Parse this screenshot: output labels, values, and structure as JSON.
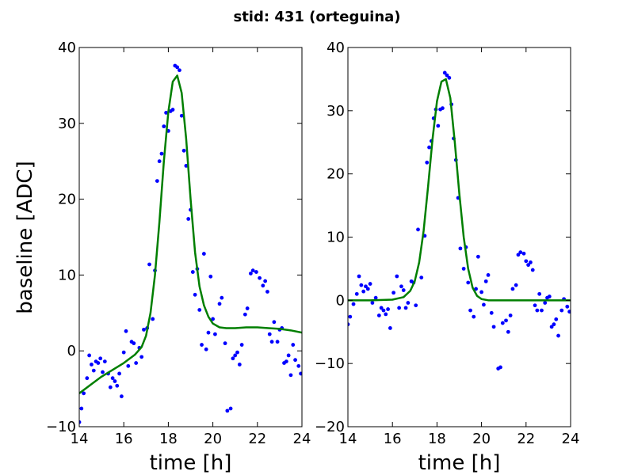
{
  "figure": {
    "title": "stid: 431 (orteguina)",
    "ylabel": "baseline [ADC]",
    "colors": {
      "points": "#0000ff",
      "fit": "#007f00",
      "axes": "#000000",
      "background": "#ffffff"
    }
  },
  "chart_data": [
    {
      "type": "scatter",
      "title": "",
      "xlabel": "time [h]",
      "ylabel": "baseline [ADC]",
      "xlim": [
        14,
        24
      ],
      "ylim": [
        -10,
        40
      ],
      "xticks": [
        14,
        16,
        18,
        20,
        22,
        24
      ],
      "yticks": [
        -10,
        0,
        10,
        20,
        30,
        40
      ],
      "grid": false,
      "series": [
        {
          "kind": "points",
          "x": [
            14.0,
            14.1,
            14.2,
            14.35,
            14.45,
            14.55,
            14.65,
            14.75,
            14.85,
            14.95,
            15.05,
            15.15,
            15.3,
            15.4,
            15.5,
            15.6,
            15.7,
            15.8,
            15.9,
            16.0,
            16.1,
            16.2,
            16.35,
            16.45,
            16.55,
            16.7,
            16.8,
            16.9,
            17.05,
            17.15,
            17.3,
            17.4,
            17.5,
            17.6,
            17.7,
            17.8,
            17.9,
            18.0,
            18.1,
            18.2,
            18.3,
            18.4,
            18.5,
            18.6,
            18.7,
            18.8,
            18.9,
            19.0,
            19.1,
            19.2,
            19.3,
            19.4,
            19.5,
            19.6,
            19.7,
            19.8,
            19.9,
            20.0,
            20.1,
            20.3,
            20.4,
            20.55,
            20.65,
            20.8,
            20.9,
            21.0,
            21.1,
            21.2,
            21.3,
            21.45,
            21.55,
            21.7,
            21.8,
            21.95,
            22.1,
            22.25,
            22.35,
            22.45,
            22.55,
            22.65,
            22.75,
            22.9,
            23.0,
            23.1,
            23.2,
            23.3,
            23.4,
            23.5,
            23.6,
            23.7,
            23.85,
            23.95
          ],
          "y": [
            -9.4,
            -7.6,
            -5.6,
            -3.6,
            -0.6,
            -1.8,
            -2.6,
            -1.4,
            -1.6,
            -1.0,
            -2.8,
            -1.4,
            -3.0,
            -4.8,
            -3.6,
            -4.0,
            -4.6,
            -3.0,
            -6.0,
            -0.2,
            2.6,
            -2.0,
            1.2,
            1.0,
            -1.6,
            0.4,
            -0.8,
            2.8,
            3.0,
            11.4,
            4.2,
            10.6,
            22.4,
            25.0,
            26.0,
            29.6,
            31.4,
            29.0,
            31.6,
            31.8,
            37.6,
            37.4,
            37.0,
            31.0,
            26.4,
            24.4,
            17.4,
            18.6,
            10.4,
            7.4,
            10.8,
            5.4,
            0.8,
            12.8,
            0.2,
            2.4,
            9.8,
            4.2,
            2.2,
            6.2,
            7.0,
            1.0,
            -7.9,
            -7.6,
            -1.0,
            -0.6,
            -0.2,
            -1.8,
            0.8,
            4.8,
            5.6,
            10.2,
            10.6,
            10.4,
            9.6,
            8.6,
            9.2,
            7.8,
            2.2,
            1.2,
            3.8,
            1.2,
            2.8,
            3.0,
            -1.6,
            -1.4,
            -0.6,
            -3.2,
            0.8,
            -1.2,
            -2.0,
            -3.0
          ],
          "color": "#0000ff"
        },
        {
          "kind": "line",
          "x": [
            14.0,
            14.5,
            15.0,
            15.5,
            16.0,
            16.5,
            16.8,
            17.0,
            17.2,
            17.4,
            17.6,
            17.8,
            18.0,
            18.2,
            18.4,
            18.6,
            18.8,
            19.0,
            19.2,
            19.4,
            19.6,
            19.8,
            20.0,
            20.3,
            20.6,
            21.0,
            21.5,
            22.0,
            22.5,
            23.0,
            23.5,
            24.0
          ],
          "y": [
            -5.6,
            -4.5,
            -3.4,
            -2.5,
            -1.6,
            -0.5,
            0.5,
            2.0,
            5.0,
            10.0,
            17.0,
            25.0,
            31.5,
            35.5,
            36.3,
            34.0,
            28.0,
            20.0,
            13.0,
            8.5,
            6.0,
            4.5,
            3.6,
            3.1,
            3.0,
            3.0,
            3.1,
            3.1,
            3.0,
            2.9,
            2.7,
            2.4
          ],
          "color": "#007f00"
        }
      ]
    },
    {
      "type": "scatter",
      "title": "",
      "xlabel": "time [h]",
      "ylabel": "",
      "xlim": [
        14,
        24
      ],
      "ylim": [
        -20,
        40
      ],
      "xticks": [
        14,
        16,
        18,
        20,
        22,
        24
      ],
      "yticks": [
        -20,
        -10,
        0,
        10,
        20,
        30,
        40
      ],
      "grid": false,
      "series": [
        {
          "kind": "points",
          "x": [
            14.0,
            14.1,
            14.25,
            14.4,
            14.5,
            14.6,
            14.7,
            14.8,
            14.9,
            15.0,
            15.1,
            15.25,
            15.4,
            15.5,
            15.6,
            15.7,
            15.8,
            15.9,
            16.05,
            16.2,
            16.3,
            16.4,
            16.5,
            16.6,
            16.7,
            16.85,
            16.95,
            17.05,
            17.15,
            17.3,
            17.45,
            17.55,
            17.65,
            17.75,
            17.85,
            17.95,
            18.05,
            18.15,
            18.25,
            18.35,
            18.45,
            18.55,
            18.65,
            18.75,
            18.85,
            18.95,
            19.05,
            19.2,
            19.3,
            19.4,
            19.5,
            19.65,
            19.75,
            19.85,
            20.0,
            20.1,
            20.2,
            20.3,
            20.45,
            20.55,
            20.75,
            20.85,
            20.95,
            21.1,
            21.2,
            21.3,
            21.4,
            21.55,
            21.65,
            21.75,
            21.9,
            22.0,
            22.1,
            22.2,
            22.3,
            22.4,
            22.5,
            22.6,
            22.7,
            22.85,
            22.95,
            23.05,
            23.15,
            23.25,
            23.35,
            23.45,
            23.6,
            23.7,
            23.85,
            23.95
          ],
          "y": [
            -3.8,
            -2.6,
            -0.6,
            1.0,
            3.8,
            2.4,
            1.4,
            2.2,
            1.8,
            2.6,
            -0.4,
            0.4,
            -2.4,
            -1.2,
            -1.6,
            -2.2,
            -1.4,
            -4.4,
            1.2,
            3.8,
            -1.2,
            2.2,
            1.6,
            -1.2,
            -0.4,
            3.0,
            2.8,
            -0.8,
            11.2,
            3.6,
            10.2,
            21.8,
            24.2,
            25.2,
            28.8,
            30.2,
            27.6,
            30.2,
            30.4,
            36.0,
            35.6,
            35.2,
            31.0,
            25.6,
            22.2,
            16.2,
            8.2,
            5.0,
            8.4,
            2.8,
            -1.6,
            -2.6,
            1.8,
            6.9,
            1.3,
            -0.7,
            3.0,
            4.0,
            -2.0,
            -4.2,
            -10.8,
            -10.6,
            -3.6,
            -3.2,
            -5.0,
            -2.4,
            1.8,
            2.4,
            7.2,
            7.6,
            7.4,
            6.2,
            5.6,
            6.0,
            4.8,
            -0.8,
            -1.6,
            1.0,
            -1.6,
            -0.4,
            0.4,
            0.6,
            -4.2,
            -3.8,
            -3.0,
            -5.6,
            -1.6,
            0.2,
            -1.0,
            -1.8
          ],
          "color": "#0000ff"
        },
        {
          "kind": "line",
          "x": [
            14.0,
            15.0,
            16.0,
            16.5,
            16.8,
            17.0,
            17.2,
            17.4,
            17.6,
            17.8,
            18.0,
            18.2,
            18.4,
            18.6,
            18.8,
            19.0,
            19.2,
            19.4,
            19.6,
            19.8,
            20.0,
            20.3,
            21.0,
            22.0,
            23.0,
            24.0
          ],
          "y": [
            0.0,
            0.0,
            0.1,
            0.5,
            1.5,
            3.0,
            6.0,
            11.0,
            18.0,
            25.5,
            31.5,
            34.6,
            35.0,
            32.0,
            25.0,
            17.0,
            10.0,
            5.0,
            2.0,
            0.7,
            0.2,
            0.0,
            0.0,
            0.0,
            0.0,
            0.0
          ],
          "color": "#007f00"
        }
      ]
    }
  ]
}
